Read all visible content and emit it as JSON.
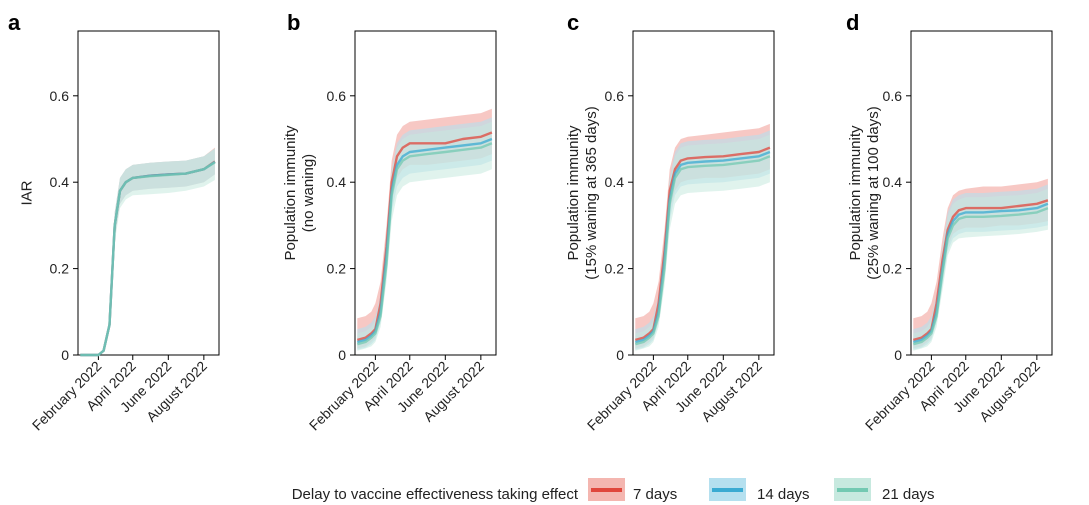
{
  "legend": {
    "title": "Delay to vaccine effectiveness taking effect",
    "entries": [
      {
        "label": "7 days",
        "color": "#e0473c",
        "band": "#f4b6b0"
      },
      {
        "label": "14 days",
        "color": "#3aabd2",
        "band": "#b5e0ef"
      },
      {
        "label": "21 days",
        "color": "#73c9b2",
        "band": "#c7e9df"
      }
    ]
  },
  "chart_data": [
    {
      "panel": "a",
      "type": "line",
      "ylabel": [
        "IAR"
      ],
      "ylim": [
        0,
        0.75
      ],
      "yticks": [
        0,
        0.2,
        0.4,
        0.6
      ],
      "ytick_labels": [
        "0",
        "0.2",
        "0.4",
        "0.6"
      ],
      "xticks": [
        "February 2022",
        "April 2022",
        "June 2022",
        "August 2022"
      ],
      "x": [
        "2022-01-01",
        "2022-01-15",
        "2022-01-25",
        "2022-02-01",
        "2022-02-10",
        "2022-02-20",
        "2022-03-01",
        "2022-03-10",
        "2022-03-20",
        "2022-04-01",
        "2022-05-01",
        "2022-06-01",
        "2022-07-01",
        "2022-08-01",
        "2022-08-20"
      ],
      "series": [
        {
          "name": "7 days",
          "values": [
            0,
            0,
            0,
            0,
            0.01,
            0.07,
            0.3,
            0.38,
            0.4,
            0.41,
            0.415,
            0.418,
            0.42,
            0.43,
            0.448
          ],
          "lower": [
            0,
            0,
            0,
            0,
            0.01,
            0.06,
            0.27,
            0.35,
            0.37,
            0.38,
            0.385,
            0.387,
            0.39,
            0.4,
            0.418
          ],
          "upper": [
            0,
            0,
            0,
            0,
            0.012,
            0.08,
            0.33,
            0.41,
            0.43,
            0.44,
            0.445,
            0.448,
            0.45,
            0.46,
            0.48
          ]
        },
        {
          "name": "14 days",
          "values": [
            0,
            0,
            0,
            0,
            0.01,
            0.07,
            0.3,
            0.38,
            0.4,
            0.41,
            0.415,
            0.418,
            0.42,
            0.43,
            0.447
          ],
          "lower": [
            0,
            0,
            0,
            0,
            0.01,
            0.06,
            0.27,
            0.35,
            0.37,
            0.38,
            0.385,
            0.387,
            0.39,
            0.4,
            0.418
          ],
          "upper": [
            0,
            0,
            0,
            0,
            0.012,
            0.08,
            0.33,
            0.41,
            0.43,
            0.44,
            0.445,
            0.448,
            0.45,
            0.46,
            0.478
          ]
        },
        {
          "name": "21 days",
          "values": [
            0,
            0,
            0,
            0,
            0.01,
            0.07,
            0.3,
            0.38,
            0.4,
            0.41,
            0.414,
            0.417,
            0.42,
            0.43,
            0.446
          ],
          "lower": [
            0,
            0,
            0,
            0,
            0.01,
            0.06,
            0.26,
            0.34,
            0.36,
            0.37,
            0.372,
            0.375,
            0.38,
            0.39,
            0.405
          ],
          "upper": [
            0,
            0,
            0,
            0,
            0.012,
            0.08,
            0.33,
            0.41,
            0.43,
            0.44,
            0.445,
            0.448,
            0.45,
            0.46,
            0.478
          ]
        }
      ]
    },
    {
      "panel": "b",
      "type": "line",
      "ylabel": [
        "Population immunity",
        "(no waning)"
      ],
      "ylim": [
        0,
        0.75
      ],
      "yticks": [
        0,
        0.2,
        0.4,
        0.6
      ],
      "ytick_labels": [
        "0",
        "0.2",
        "0.4",
        "0.6"
      ],
      "xticks": [
        "February 2022",
        "April 2022",
        "June 2022",
        "August 2022"
      ],
      "x": [
        "2022-01-01",
        "2022-01-15",
        "2022-01-25",
        "2022-02-01",
        "2022-02-10",
        "2022-02-20",
        "2022-03-01",
        "2022-03-10",
        "2022-03-20",
        "2022-04-01",
        "2022-05-01",
        "2022-06-01",
        "2022-07-01",
        "2022-08-01",
        "2022-08-20"
      ],
      "series": [
        {
          "name": "7 days",
          "values": [
            0.035,
            0.04,
            0.05,
            0.06,
            0.12,
            0.25,
            0.4,
            0.46,
            0.48,
            0.49,
            0.49,
            0.49,
            0.5,
            0.505,
            0.515
          ],
          "lower": [
            0.015,
            0.02,
            0.03,
            0.04,
            0.09,
            0.21,
            0.35,
            0.41,
            0.43,
            0.44,
            0.44,
            0.445,
            0.45,
            0.455,
            0.465
          ],
          "upper": [
            0.085,
            0.09,
            0.1,
            0.12,
            0.17,
            0.3,
            0.45,
            0.51,
            0.53,
            0.54,
            0.545,
            0.55,
            0.555,
            0.56,
            0.57
          ]
        },
        {
          "name": "14 days",
          "values": [
            0.03,
            0.035,
            0.045,
            0.055,
            0.1,
            0.23,
            0.38,
            0.44,
            0.46,
            0.47,
            0.475,
            0.48,
            0.485,
            0.49,
            0.5
          ],
          "lower": [
            0.012,
            0.017,
            0.025,
            0.035,
            0.075,
            0.19,
            0.33,
            0.39,
            0.41,
            0.42,
            0.425,
            0.43,
            0.435,
            0.44,
            0.45
          ],
          "upper": [
            0.06,
            0.065,
            0.075,
            0.09,
            0.14,
            0.28,
            0.43,
            0.49,
            0.51,
            0.52,
            0.525,
            0.53,
            0.535,
            0.54,
            0.55
          ]
        },
        {
          "name": "21 days",
          "values": [
            0.025,
            0.03,
            0.04,
            0.05,
            0.09,
            0.21,
            0.37,
            0.43,
            0.45,
            0.46,
            0.465,
            0.47,
            0.475,
            0.48,
            0.49
          ],
          "lower": [
            0.01,
            0.015,
            0.02,
            0.03,
            0.065,
            0.17,
            0.31,
            0.37,
            0.39,
            0.4,
            0.405,
            0.41,
            0.415,
            0.42,
            0.43
          ],
          "upper": [
            0.05,
            0.055,
            0.065,
            0.08,
            0.13,
            0.27,
            0.42,
            0.48,
            0.5,
            0.51,
            0.515,
            0.52,
            0.525,
            0.53,
            0.54
          ]
        }
      ]
    },
    {
      "panel": "c",
      "type": "line",
      "ylabel": [
        "Population immunity",
        "(15% waning at 365 days)"
      ],
      "ylim": [
        0,
        0.75
      ],
      "yticks": [
        0,
        0.2,
        0.4,
        0.6
      ],
      "ytick_labels": [
        "0",
        "0.2",
        "0.4",
        "0.6"
      ],
      "xticks": [
        "February 2022",
        "April 2022",
        "June 2022",
        "August 2022"
      ],
      "x": [
        "2022-01-01",
        "2022-01-15",
        "2022-01-25",
        "2022-02-01",
        "2022-02-10",
        "2022-02-20",
        "2022-03-01",
        "2022-03-10",
        "2022-03-20",
        "2022-04-01",
        "2022-05-01",
        "2022-06-01",
        "2022-07-01",
        "2022-08-01",
        "2022-08-20"
      ],
      "series": [
        {
          "name": "7 days",
          "values": [
            0.035,
            0.04,
            0.05,
            0.06,
            0.12,
            0.24,
            0.38,
            0.43,
            0.45,
            0.455,
            0.458,
            0.46,
            0.465,
            0.47,
            0.48
          ],
          "lower": [
            0.015,
            0.02,
            0.03,
            0.04,
            0.09,
            0.2,
            0.33,
            0.38,
            0.4,
            0.405,
            0.41,
            0.41,
            0.415,
            0.42,
            0.43
          ],
          "upper": [
            0.085,
            0.09,
            0.1,
            0.12,
            0.17,
            0.29,
            0.43,
            0.48,
            0.5,
            0.505,
            0.51,
            0.515,
            0.52,
            0.525,
            0.535
          ]
        },
        {
          "name": "14 days",
          "values": [
            0.03,
            0.035,
            0.045,
            0.055,
            0.1,
            0.22,
            0.36,
            0.42,
            0.44,
            0.445,
            0.448,
            0.45,
            0.455,
            0.46,
            0.47
          ],
          "lower": [
            0.012,
            0.017,
            0.025,
            0.035,
            0.075,
            0.18,
            0.31,
            0.37,
            0.39,
            0.395,
            0.398,
            0.4,
            0.405,
            0.41,
            0.42
          ],
          "upper": [
            0.06,
            0.065,
            0.075,
            0.09,
            0.14,
            0.27,
            0.41,
            0.47,
            0.49,
            0.495,
            0.498,
            0.5,
            0.505,
            0.51,
            0.52
          ]
        },
        {
          "name": "21 days",
          "values": [
            0.025,
            0.03,
            0.04,
            0.05,
            0.09,
            0.2,
            0.35,
            0.41,
            0.43,
            0.435,
            0.438,
            0.44,
            0.445,
            0.45,
            0.46
          ],
          "lower": [
            0.01,
            0.015,
            0.02,
            0.03,
            0.065,
            0.16,
            0.29,
            0.35,
            0.37,
            0.375,
            0.378,
            0.38,
            0.385,
            0.39,
            0.4
          ],
          "upper": [
            0.05,
            0.055,
            0.065,
            0.08,
            0.13,
            0.26,
            0.4,
            0.46,
            0.48,
            0.485,
            0.488,
            0.49,
            0.495,
            0.5,
            0.51
          ]
        }
      ]
    },
    {
      "panel": "d",
      "type": "line",
      "ylabel": [
        "Population immunity",
        "(25% waning at 100 days)"
      ],
      "ylim": [
        0,
        0.75
      ],
      "yticks": [
        0,
        0.2,
        0.4,
        0.6
      ],
      "ytick_labels": [
        "0",
        "0.2",
        "0.4",
        "0.6"
      ],
      "xticks": [
        "February 2022",
        "April 2022",
        "June 2022",
        "August 2022"
      ],
      "x": [
        "2022-01-01",
        "2022-01-15",
        "2022-01-25",
        "2022-02-01",
        "2022-02-10",
        "2022-02-20",
        "2022-03-01",
        "2022-03-10",
        "2022-03-20",
        "2022-04-01",
        "2022-05-01",
        "2022-06-01",
        "2022-07-01",
        "2022-08-01",
        "2022-08-20"
      ],
      "series": [
        {
          "name": "7 days",
          "values": [
            0.035,
            0.04,
            0.05,
            0.06,
            0.12,
            0.22,
            0.29,
            0.32,
            0.335,
            0.34,
            0.34,
            0.34,
            0.345,
            0.35,
            0.358
          ],
          "lower": [
            0.015,
            0.02,
            0.03,
            0.04,
            0.09,
            0.18,
            0.25,
            0.28,
            0.29,
            0.295,
            0.295,
            0.3,
            0.3,
            0.305,
            0.31
          ],
          "upper": [
            0.085,
            0.09,
            0.1,
            0.12,
            0.17,
            0.27,
            0.34,
            0.37,
            0.38,
            0.385,
            0.39,
            0.39,
            0.395,
            0.4,
            0.408
          ]
        },
        {
          "name": "14 days",
          "values": [
            0.03,
            0.035,
            0.045,
            0.055,
            0.1,
            0.2,
            0.28,
            0.31,
            0.325,
            0.33,
            0.33,
            0.333,
            0.335,
            0.34,
            0.35
          ],
          "lower": [
            0.012,
            0.017,
            0.025,
            0.035,
            0.075,
            0.16,
            0.24,
            0.27,
            0.28,
            0.285,
            0.285,
            0.288,
            0.29,
            0.295,
            0.3
          ],
          "upper": [
            0.06,
            0.065,
            0.075,
            0.09,
            0.14,
            0.25,
            0.33,
            0.36,
            0.37,
            0.375,
            0.375,
            0.378,
            0.38,
            0.385,
            0.395
          ]
        },
        {
          "name": "21 days",
          "values": [
            0.025,
            0.03,
            0.04,
            0.05,
            0.09,
            0.19,
            0.27,
            0.3,
            0.315,
            0.32,
            0.32,
            0.322,
            0.325,
            0.33,
            0.34
          ],
          "lower": [
            0.01,
            0.015,
            0.02,
            0.03,
            0.065,
            0.15,
            0.23,
            0.26,
            0.27,
            0.272,
            0.275,
            0.277,
            0.28,
            0.285,
            0.29
          ],
          "upper": [
            0.05,
            0.055,
            0.065,
            0.08,
            0.13,
            0.24,
            0.32,
            0.35,
            0.36,
            0.365,
            0.365,
            0.368,
            0.37,
            0.375,
            0.385
          ]
        }
      ]
    }
  ]
}
